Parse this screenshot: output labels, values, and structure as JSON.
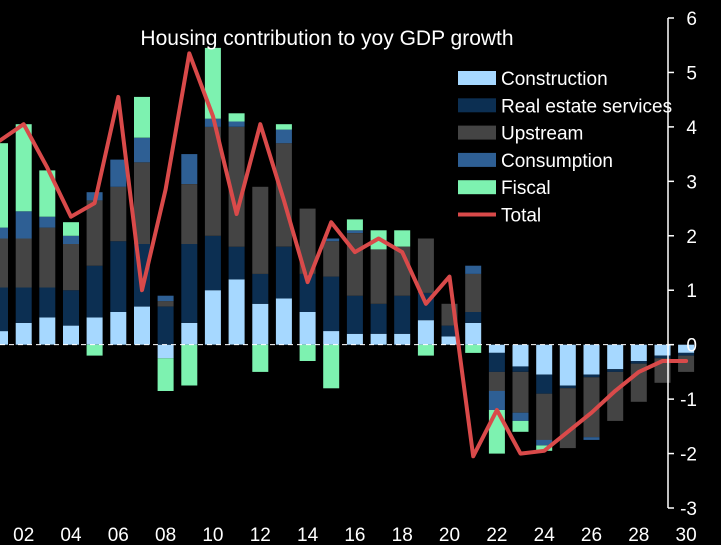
{
  "chart_data": {
    "type": "bar",
    "title": "Housing contribution to yoy GDP growth",
    "xlabel": "",
    "ylabel": "",
    "ylim": [
      -3,
      6
    ],
    "grid": false,
    "legend_position": "top-right",
    "x_tick_labels": [
      "02",
      "04",
      "06",
      "08",
      "10",
      "12",
      "14",
      "16",
      "18",
      "20",
      "22",
      "24",
      "26",
      "28",
      "30"
    ],
    "y_tick_labels": [
      "-3",
      "-2",
      "-1",
      "0",
      "1",
      "2",
      "3",
      "4",
      "5",
      "6"
    ],
    "categories": [
      2001,
      2002,
      2003,
      2004,
      2005,
      2006,
      2007,
      2008,
      2009,
      2010,
      2011,
      2012,
      2013,
      2014,
      2015,
      2016,
      2017,
      2018,
      2019,
      2020,
      2021,
      2022,
      2023,
      2024,
      2025,
      2026,
      2027,
      2028,
      2029,
      2030
    ],
    "series": [
      {
        "name": "Construction",
        "color": "#a6d8ff",
        "values": [
          0.25,
          0.4,
          0.5,
          0.35,
          0.5,
          0.6,
          0.7,
          -0.25,
          0.4,
          1.0,
          1.2,
          0.75,
          0.85,
          0.6,
          0.25,
          0.2,
          0.2,
          0.2,
          0.45,
          0.15,
          0.4,
          -0.15,
          -0.4,
          -0.55,
          -0.75,
          -0.55,
          -0.45,
          -0.3,
          -0.2,
          -0.15
        ]
      },
      {
        "name": "Real estate services",
        "color": "#0c2f52",
        "values": [
          0.8,
          0.65,
          0.55,
          0.65,
          0.95,
          1.3,
          1.15,
          0.7,
          1.45,
          1.0,
          0.6,
          0.55,
          0.95,
          0.7,
          1.0,
          0.7,
          0.55,
          0.7,
          0.5,
          0.2,
          0.2,
          -0.35,
          -0.1,
          -0.35,
          -0.05,
          -0.05,
          -0.05,
          -0.05,
          -0.05,
          -0.05
        ]
      },
      {
        "name": "Upstream",
        "color": "#444444",
        "values": [
          0.9,
          0.9,
          1.1,
          0.85,
          1.2,
          1.0,
          1.5,
          0.1,
          1.1,
          2.0,
          2.2,
          1.6,
          1.9,
          1.2,
          0.65,
          1.15,
          1.0,
          0.9,
          1.0,
          0.4,
          0.7,
          -0.35,
          -0.75,
          -0.85,
          -1.1,
          -1.1,
          -0.9,
          -0.7,
          -0.45,
          -0.3
        ]
      },
      {
        "name": "Consumption",
        "color": "#2e5f94",
        "values": [
          0.2,
          0.5,
          0.2,
          0.15,
          0.15,
          0.5,
          0.45,
          0.1,
          0.55,
          0.15,
          0.1,
          0.0,
          0.25,
          0.0,
          0.05,
          0.05,
          0.0,
          0.0,
          0.0,
          0.0,
          0.15,
          -0.35,
          -0.15,
          -0.1,
          0.0,
          -0.05,
          0.0,
          0.0,
          0.0,
          0.0
        ]
      },
      {
        "name": "Fiscal",
        "color": "#7df2b0",
        "values": [
          1.55,
          1.6,
          0.85,
          0.25,
          -0.2,
          0.0,
          0.75,
          -0.6,
          -0.75,
          1.3,
          0.15,
          -0.5,
          0.1,
          -0.3,
          -0.8,
          0.2,
          0.35,
          0.3,
          -0.2,
          0.0,
          -0.15,
          -0.8,
          -0.2,
          -0.1,
          0.0,
          0.0,
          0.0,
          0.0,
          0.0,
          0.0
        ]
      },
      {
        "name": "Total",
        "color": "#d94a4a",
        "type": "line",
        "values": [
          3.75,
          4.05,
          3.25,
          2.35,
          2.6,
          4.55,
          1.0,
          2.85,
          5.35,
          4.2,
          2.4,
          4.05,
          2.65,
          1.15,
          2.25,
          1.7,
          1.95,
          1.7,
          0.75,
          1.25,
          -2.05,
          -1.2,
          -2.0,
          -1.95,
          -1.6,
          -1.25,
          -0.85,
          -0.5,
          -0.3,
          -0.3
        ]
      }
    ]
  }
}
